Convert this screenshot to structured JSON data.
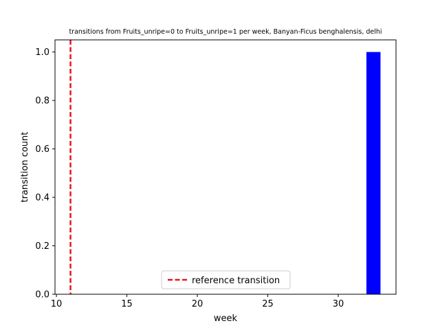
{
  "chart_data": {
    "type": "bar",
    "title": "transitions from Fruits_unripe=0 to Fruits_unripe=1 per week, Banyan-Ficus benghalensis, delhi",
    "xlabel": "week",
    "ylabel": "transition count",
    "xlim": [
      9.9,
      34.1
    ],
    "ylim": [
      0,
      1.05
    ],
    "xticks": [
      10,
      15,
      20,
      25,
      30
    ],
    "yticks": [
      0.0,
      0.2,
      0.4,
      0.6,
      0.8,
      1.0
    ],
    "xtick_labels": [
      "10",
      "15",
      "20",
      "25",
      "30"
    ],
    "ytick_labels": [
      "0.0",
      "0.2",
      "0.4",
      "0.6",
      "0.8",
      "1.0"
    ],
    "bars": [
      {
        "x": 32,
        "width": 1,
        "value": 1,
        "color": "#0000ff"
      }
    ],
    "reference_line": {
      "x": 11,
      "label": "reference transition",
      "color": "#e8141c",
      "style": "dashed"
    },
    "legend": {
      "placement": "lower center",
      "entries": [
        "reference transition"
      ]
    },
    "grid": false
  }
}
